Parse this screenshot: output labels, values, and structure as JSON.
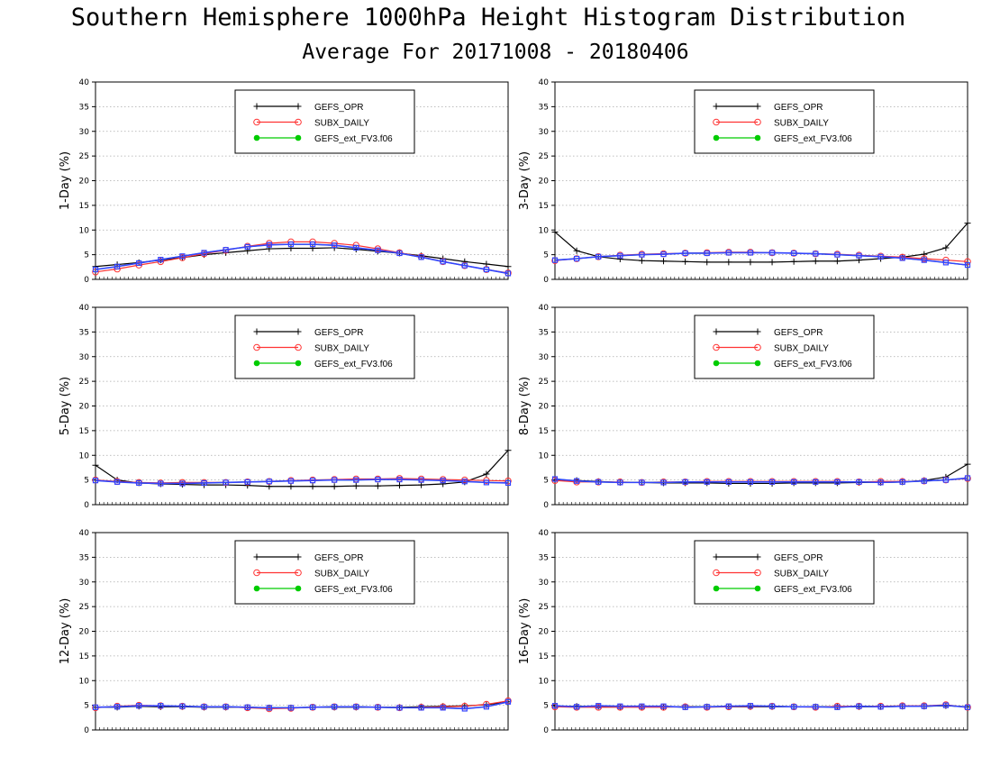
{
  "header": {
    "title": "Southern Hemisphere 1000hPa Height Histogram Distribution",
    "subtitle": "Average For 20171008 - 20180406"
  },
  "colors": {
    "GEFS_OPR": "#000000",
    "SUBX_DAILY": "#ff3333",
    "GEFS_ext_FV3.f06": "#00cc00",
    "overlay": "#3344ff"
  },
  "legend": {
    "entries": [
      {
        "name": "GEFS_OPR",
        "marker": "plus-icon"
      },
      {
        "name": "SUBX_DAILY",
        "marker": "open-circle-icon"
      },
      {
        "name": "GEFS_ext_FV3.f06",
        "marker": "filled-circle-icon"
      }
    ]
  },
  "chart_data": [
    {
      "type": "line",
      "ylabel": "1-Day (%)",
      "ylim": [
        0,
        40
      ],
      "yticks": [
        0,
        5,
        10,
        15,
        20,
        25,
        30,
        35,
        40
      ],
      "grid": true,
      "legend_position": "top-center",
      "series": [
        {
          "name": "GEFS_OPR",
          "values": [
            2.6,
            3.0,
            3.4,
            3.9,
            4.4,
            5.0,
            5.4,
            5.8,
            6.2,
            6.3,
            6.3,
            6.4,
            6.1,
            5.7,
            5.3,
            4.8,
            4.2,
            3.6,
            3.1,
            2.6
          ]
        },
        {
          "name": "SUBX_DAILY",
          "values": [
            1.5,
            2.1,
            2.9,
            3.6,
            4.4,
            5.2,
            5.9,
            6.7,
            7.3,
            7.6,
            7.6,
            7.3,
            6.9,
            6.2,
            5.4,
            4.6,
            3.6,
            2.8,
            2.0,
            1.3
          ]
        },
        {
          "name": "GEFS_ext_FV3.f06",
          "values": [
            2.0,
            2.6,
            3.3,
            4.0,
            4.7,
            5.4,
            6.0,
            6.6,
            7.0,
            7.1,
            7.1,
            6.9,
            6.4,
            5.9,
            5.3,
            4.5,
            3.6,
            2.8,
            2.0,
            1.2
          ]
        }
      ]
    },
    {
      "type": "line",
      "ylabel": "3-Day (%)",
      "ylim": [
        0,
        40
      ],
      "yticks": [
        0,
        5,
        10,
        15,
        20,
        25,
        30,
        35,
        40
      ],
      "grid": true,
      "legend_position": "top-center",
      "series": [
        {
          "name": "GEFS_OPR",
          "values": [
            9.6,
            5.8,
            4.6,
            4.1,
            3.8,
            3.7,
            3.6,
            3.5,
            3.5,
            3.5,
            3.5,
            3.6,
            3.7,
            3.7,
            3.9,
            4.2,
            4.5,
            5.1,
            6.4,
            11.4
          ]
        },
        {
          "name": "SUBX_DAILY",
          "values": [
            3.8,
            4.2,
            4.6,
            4.9,
            5.1,
            5.2,
            5.3,
            5.4,
            5.5,
            5.5,
            5.4,
            5.3,
            5.2,
            5.1,
            4.9,
            4.7,
            4.5,
            4.2,
            3.9,
            3.6
          ]
        },
        {
          "name": "GEFS_ext_FV3.f06",
          "values": [
            3.9,
            4.2,
            4.6,
            4.8,
            5.0,
            5.1,
            5.3,
            5.3,
            5.4,
            5.4,
            5.4,
            5.3,
            5.2,
            5.0,
            4.8,
            4.6,
            4.3,
            3.9,
            3.4,
            2.9
          ]
        }
      ]
    },
    {
      "type": "line",
      "ylabel": "5-Day (%)",
      "ylim": [
        0,
        40
      ],
      "yticks": [
        0,
        5,
        10,
        15,
        20,
        25,
        30,
        35,
        40
      ],
      "grid": true,
      "legend_position": "top-center",
      "series": [
        {
          "name": "GEFS_OPR",
          "values": [
            8.0,
            5.0,
            4.4,
            4.2,
            4.1,
            4.0,
            4.0,
            3.9,
            3.7,
            3.7,
            3.7,
            3.7,
            3.8,
            3.8,
            3.9,
            4.0,
            4.2,
            4.6,
            6.2,
            11.0
          ]
        },
        {
          "name": "SUBX_DAILY",
          "values": [
            5.0,
            4.7,
            4.5,
            4.4,
            4.5,
            4.5,
            4.5,
            4.6,
            4.7,
            4.9,
            5.0,
            5.1,
            5.2,
            5.2,
            5.3,
            5.2,
            5.1,
            5.0,
            4.9,
            4.8
          ]
        },
        {
          "name": "GEFS_ext_FV3.f06",
          "values": [
            4.9,
            4.6,
            4.4,
            4.3,
            4.3,
            4.4,
            4.5,
            4.6,
            4.7,
            4.8,
            4.9,
            5.0,
            5.0,
            5.1,
            5.1,
            5.0,
            4.9,
            4.7,
            4.5,
            4.4
          ]
        }
      ]
    },
    {
      "type": "line",
      "ylabel": "8-Day (%)",
      "ylim": [
        0,
        40
      ],
      "yticks": [
        0,
        5,
        10,
        15,
        20,
        25,
        30,
        35,
        40
      ],
      "grid": true,
      "legend_position": "top-center",
      "series": [
        {
          "name": "GEFS_OPR",
          "values": [
            5.0,
            4.9,
            4.7,
            4.5,
            4.5,
            4.4,
            4.4,
            4.4,
            4.3,
            4.3,
            4.3,
            4.4,
            4.4,
            4.4,
            4.5,
            4.5,
            4.6,
            4.9,
            5.6,
            8.2
          ]
        },
        {
          "name": "SUBX_DAILY",
          "values": [
            4.9,
            4.6,
            4.6,
            4.6,
            4.5,
            4.6,
            4.6,
            4.7,
            4.7,
            4.7,
            4.7,
            4.7,
            4.7,
            4.7,
            4.6,
            4.7,
            4.7,
            4.8,
            5.0,
            5.3
          ]
        },
        {
          "name": "GEFS_ext_FV3.f06",
          "values": [
            5.2,
            4.8,
            4.6,
            4.5,
            4.5,
            4.5,
            4.6,
            4.6,
            4.6,
            4.6,
            4.6,
            4.6,
            4.6,
            4.6,
            4.6,
            4.5,
            4.6,
            4.8,
            5.0,
            5.4
          ]
        }
      ]
    },
    {
      "type": "line",
      "ylabel": "12-Day (%)",
      "ylim": [
        0,
        40
      ],
      "yticks": [
        0,
        5,
        10,
        15,
        20,
        25,
        30,
        35,
        40
      ],
      "grid": true,
      "legend_position": "top-center",
      "series": [
        {
          "name": "GEFS_OPR",
          "values": [
            4.6,
            4.6,
            4.8,
            4.7,
            4.7,
            4.6,
            4.6,
            4.6,
            4.5,
            4.5,
            4.6,
            4.6,
            4.6,
            4.6,
            4.6,
            4.7,
            4.8,
            4.9,
            5.1,
            5.7
          ]
        },
        {
          "name": "SUBX_DAILY",
          "values": [
            4.5,
            4.8,
            5.0,
            4.9,
            4.8,
            4.7,
            4.7,
            4.5,
            4.3,
            4.4,
            4.6,
            4.7,
            4.7,
            4.6,
            4.5,
            4.6,
            4.7,
            4.8,
            5.2,
            5.9
          ]
        },
        {
          "name": "GEFS_ext_FV3.f06",
          "values": [
            4.6,
            4.7,
            4.9,
            4.9,
            4.8,
            4.7,
            4.7,
            4.6,
            4.5,
            4.5,
            4.6,
            4.7,
            4.7,
            4.6,
            4.5,
            4.5,
            4.5,
            4.3,
            4.7,
            5.7
          ]
        }
      ]
    },
    {
      "type": "line",
      "ylabel": "16-Day (%)",
      "ylim": [
        0,
        40
      ],
      "yticks": [
        0,
        5,
        10,
        15,
        20,
        25,
        30,
        35,
        40
      ],
      "grid": true,
      "legend_position": "top-center",
      "series": [
        {
          "name": "GEFS_OPR",
          "values": [
            4.8,
            4.8,
            4.8,
            4.7,
            4.7,
            4.7,
            4.7,
            4.7,
            4.7,
            4.7,
            4.7,
            4.7,
            4.7,
            4.7,
            4.7,
            4.7,
            4.8,
            4.8,
            4.9,
            4.7
          ]
        },
        {
          "name": "SUBX_DAILY",
          "values": [
            4.7,
            4.6,
            4.6,
            4.6,
            4.6,
            4.6,
            4.7,
            4.6,
            4.7,
            4.8,
            4.8,
            4.7,
            4.6,
            4.8,
            4.8,
            4.8,
            4.9,
            4.9,
            5.1,
            4.6
          ]
        },
        {
          "name": "GEFS_ext_FV3.f06",
          "values": [
            4.9,
            4.7,
            4.9,
            4.8,
            4.8,
            4.8,
            4.6,
            4.7,
            4.8,
            4.9,
            4.8,
            4.7,
            4.7,
            4.6,
            4.8,
            4.7,
            4.8,
            4.8,
            5.0,
            4.6
          ]
        }
      ]
    }
  ]
}
